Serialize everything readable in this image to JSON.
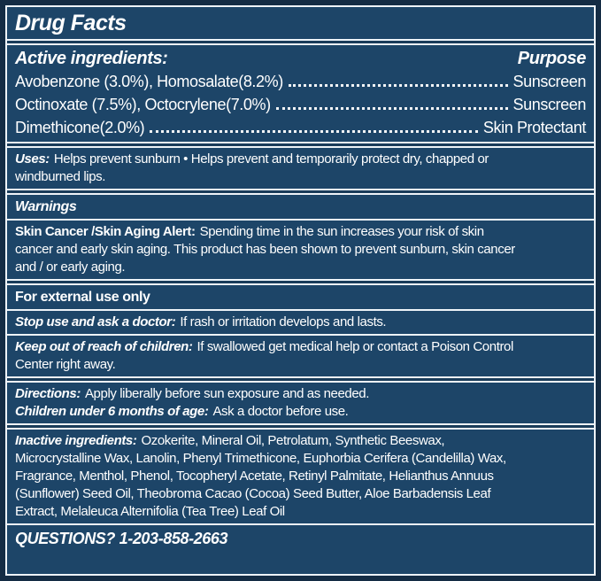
{
  "label": {
    "title": "Drug Facts",
    "colors": {
      "box_background": "#1d4568",
      "outer_background": "#142c44",
      "rule_line": "#eef3f8",
      "text": "#ffffff"
    },
    "active": {
      "heading": "Active ingredients:",
      "purpose_heading": "Purpose",
      "rows": [
        {
          "name": "Avobenzone (3.0%), Homosalate(8.2%)",
          "purpose": "Sunscreen"
        },
        {
          "name": "Octinoxate (7.5%), Octocrylene(7.0%)",
          "purpose": "Sunscreen"
        },
        {
          "name": "Dimethicone(2.0%)",
          "purpose": "Skin Protectant"
        }
      ]
    },
    "uses": {
      "lead": "Uses:",
      "lines": [
        "Helps prevent sunburn • Helps prevent and temporarily protect dry, chapped or",
        "windburned lips."
      ]
    },
    "warnings_heading": "Warnings",
    "alert": {
      "lead": "Skin Cancer /Skin Aging Alert:",
      "lines": [
        "Spending time in the sun increases your risk of skin",
        "cancer and early skin aging. This product has been shown to prevent sunburn, skin cancer",
        "and / or early aging."
      ]
    },
    "external_use": "For external use only",
    "stop_use": {
      "lead": "Stop use and ask a doctor:",
      "text": "If rash or irritation develops and lasts."
    },
    "keep_out": {
      "lead": "Keep out of reach of children:",
      "lines": [
        "If swallowed get medical help or contact a Poison Control",
        "Center right away."
      ]
    },
    "directions": {
      "lead": "Directions:",
      "text": "Apply liberally before sun exposure and as needed."
    },
    "children": {
      "lead": "Children under 6 months of age:",
      "text": "Ask a doctor before use."
    },
    "inactive": {
      "lead": "Inactive ingredients:",
      "lines": [
        "Ozokerite, Mineral Oil, Petrolatum, Synthetic Beeswax,",
        "Microcrystalline Wax, Lanolin, Phenyl Trimethicone, Euphorbia Cerifera (Candelilla) Wax,",
        "Fragrance, Menthol, Phenol, Tocopheryl Acetate, Retinyl Palmitate, Helianthus Annuus",
        "(Sunflower) Seed Oil, Theobroma Cacao (Cocoa) Seed Butter, Aloe Barbadensis Leaf",
        "Extract, Melaleuca Alternifolia (Tea Tree) Leaf Oil"
      ]
    },
    "questions": "QUESTIONS? 1-203-858-2663"
  }
}
